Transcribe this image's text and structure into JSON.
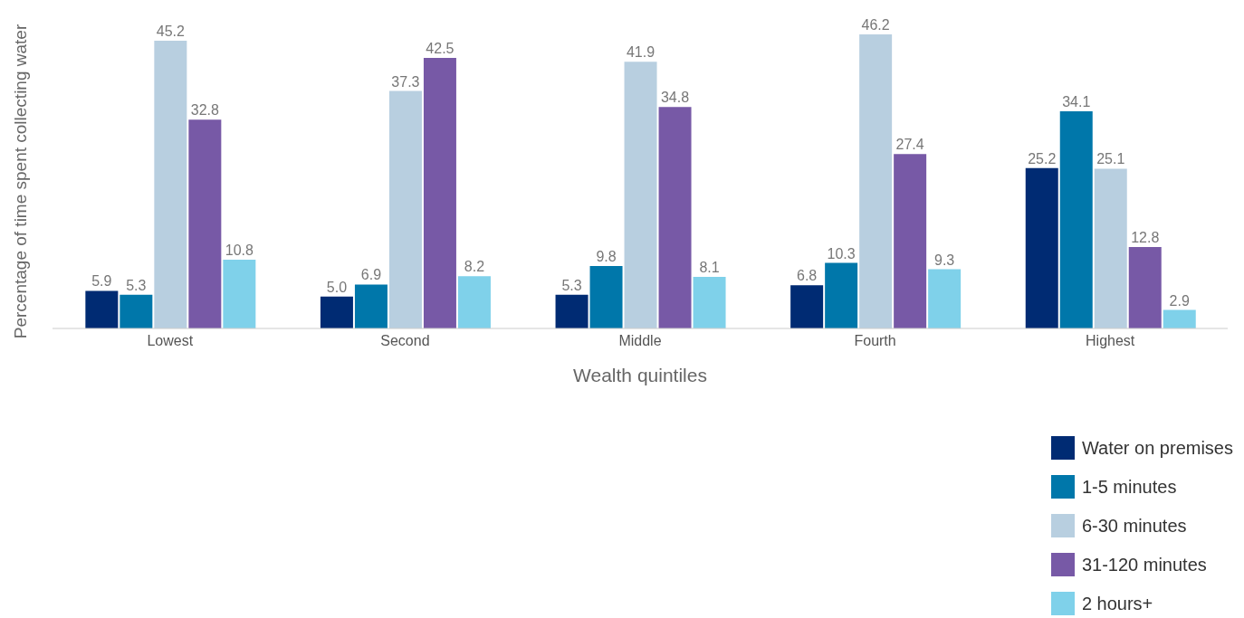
{
  "chart_data": {
    "type": "bar",
    "xlabel": "Wealth quintiles",
    "ylabel": "Percentage of time spent collecting water",
    "categories": [
      "Lowest",
      "Second",
      "Middle",
      "Fourth",
      "Highest"
    ],
    "series": [
      {
        "name": "Water on premises",
        "color": "#002b73",
        "values": [
          5.9,
          5.0,
          5.3,
          6.8,
          25.2
        ],
        "value_labels": [
          "5.9",
          "5.0",
          "5.3",
          "6.8",
          "25.2"
        ]
      },
      {
        "name": "1-5 minutes",
        "color": "#0077aa",
        "values": [
          5.3,
          6.9,
          9.8,
          10.3,
          34.1
        ],
        "value_labels": [
          "5.3",
          "6.9",
          "9.8",
          "10.3",
          "34.1"
        ]
      },
      {
        "name": "6-30 minutes",
        "color": "#b8cfe0",
        "values": [
          45.2,
          37.3,
          41.9,
          46.2,
          25.1
        ],
        "value_labels": [
          "45.2",
          "37.3",
          "41.9",
          "46.2",
          "25.1"
        ]
      },
      {
        "name": "31-120 minutes",
        "color": "#7759a6",
        "values": [
          32.8,
          42.5,
          34.8,
          27.4,
          12.8
        ],
        "value_labels": [
          "32.8",
          "42.5",
          "34.8",
          "27.4",
          "12.8"
        ]
      },
      {
        "name": "2 hours+",
        "color": "#7fd1ea",
        "values": [
          10.8,
          8.2,
          8.1,
          9.3,
          2.9
        ],
        "value_labels": [
          "10.8",
          "8.2",
          "8.1",
          "9.3",
          "2.9"
        ]
      }
    ],
    "legend": "bottom right",
    "grid": false
  }
}
